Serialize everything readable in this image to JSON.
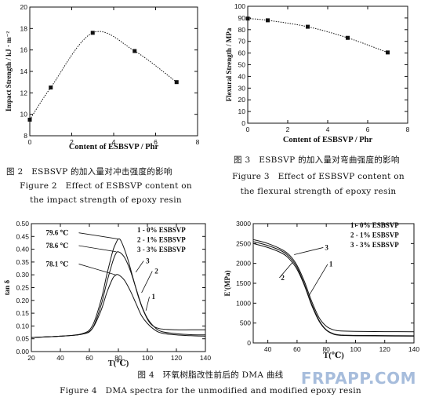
{
  "chart_data": [
    {
      "type": "line",
      "ylabel": "Impact Strength / kJ · m⁻²",
      "xlabel": "Content of ESBSVP / Phr",
      "xlim": [
        0,
        8
      ],
      "ylim": [
        8,
        20
      ],
      "xticks": [
        "0",
        "2",
        "4",
        "6",
        "8"
      ],
      "yticks": [
        "8",
        "10",
        "12",
        "14",
        "16",
        "18",
        "20"
      ],
      "grid": false,
      "series": [
        {
          "x": [
            0,
            1,
            3,
            5,
            7
          ],
          "values": [
            9.5,
            12.5,
            17.6,
            15.9,
            13.0
          ]
        }
      ]
    },
    {
      "type": "line",
      "ylabel": "Flexural Strength / MPa",
      "xlabel": "Content of ESBSVP / Phr",
      "xlim": [
        0,
        8
      ],
      "ylim": [
        0,
        100
      ],
      "xticks": [
        "0",
        "2",
        "4",
        "6",
        "8"
      ],
      "yticks": [
        "0",
        "10",
        "20",
        "30",
        "40",
        "50",
        "60",
        "70",
        "80",
        "90",
        "100"
      ],
      "grid": false,
      "series": [
        {
          "x": [
            0,
            1,
            3,
            5,
            7
          ],
          "values": [
            89.5,
            88.0,
            82.5,
            73.0,
            60.5
          ]
        }
      ]
    },
    {
      "type": "line",
      "ylabel": "tan δ",
      "xlabel": "T(℃)",
      "xlim": [
        20,
        140
      ],
      "ylim": [
        0,
        0.5
      ],
      "xticks": [
        "20",
        "40",
        "60",
        "80",
        "100",
        "120",
        "140"
      ],
      "yticks": [
        "0.00",
        "0.05",
        "0.10",
        "0.15",
        "0.20",
        "0.25",
        "0.30",
        "0.35",
        "0.40",
        "0.45",
        "0.50"
      ],
      "legend": [
        "1 - 0% ESBSVP",
        "2 - 1% ESBSVP",
        "3 - 3% ESBSVP"
      ],
      "annotations": [
        "79.6 ℃",
        "78.6 ℃",
        "78.1 ℃"
      ],
      "series": [
        {
          "name": "1",
          "x": [
            20,
            40,
            55,
            62,
            68,
            72,
            76,
            78,
            80,
            84,
            88,
            92,
            96,
            100,
            105,
            110,
            120,
            130,
            140
          ],
          "values": [
            0.055,
            0.06,
            0.068,
            0.09,
            0.16,
            0.23,
            0.285,
            0.298,
            0.3,
            0.28,
            0.24,
            0.19,
            0.14,
            0.11,
            0.085,
            0.072,
            0.065,
            0.062,
            0.06
          ]
        },
        {
          "name": "2",
          "x": [
            20,
            40,
            55,
            62,
            68,
            72,
            76,
            78,
            80,
            84,
            88,
            92,
            96,
            100,
            105,
            110,
            120,
            130,
            140
          ],
          "values": [
            0.055,
            0.06,
            0.068,
            0.09,
            0.18,
            0.27,
            0.35,
            0.38,
            0.39,
            0.37,
            0.32,
            0.25,
            0.18,
            0.13,
            0.095,
            0.078,
            0.07,
            0.066,
            0.065
          ]
        },
        {
          "name": "3",
          "x": [
            20,
            40,
            55,
            62,
            68,
            72,
            76,
            78,
            80,
            82,
            86,
            90,
            94,
            98,
            102,
            108,
            120,
            130,
            140
          ],
          "values": [
            0.055,
            0.06,
            0.07,
            0.1,
            0.2,
            0.3,
            0.39,
            0.42,
            0.44,
            0.43,
            0.37,
            0.29,
            0.21,
            0.15,
            0.11,
            0.09,
            0.085,
            0.085,
            0.085
          ]
        }
      ]
    },
    {
      "type": "line",
      "ylabel": "E'(MPa)",
      "xlabel": "T(℃)",
      "xlim": [
        30,
        140
      ],
      "ylim": [
        0,
        3000
      ],
      "xticks": [
        "40",
        "60",
        "80",
        "100",
        "120",
        "140"
      ],
      "yticks": [
        "0",
        "500",
        "1000",
        "1500",
        "2000",
        "2500",
        "3000"
      ],
      "legend": [
        "1 - 0% ESBSVP",
        "2 - 1% ESBSVP",
        "3 - 3% ESBSVP"
      ],
      "series": [
        {
          "name": "1",
          "x": [
            30,
            40,
            50,
            55,
            60,
            65,
            70,
            75,
            80,
            85,
            90,
            100,
            120,
            140
          ],
          "values": [
            2500,
            2400,
            2250,
            2100,
            1850,
            1450,
            950,
            550,
            320,
            220,
            190,
            180,
            175,
            170
          ]
        },
        {
          "name": "2",
          "x": [
            30,
            40,
            50,
            55,
            60,
            65,
            70,
            75,
            80,
            85,
            90,
            100,
            120,
            140
          ],
          "values": [
            2550,
            2450,
            2300,
            2150,
            1900,
            1480,
            980,
            570,
            330,
            230,
            200,
            190,
            185,
            180
          ]
        },
        {
          "name": "3",
          "x": [
            30,
            40,
            50,
            55,
            60,
            65,
            70,
            75,
            80,
            85,
            90,
            100,
            120,
            140
          ],
          "values": [
            2600,
            2500,
            2340,
            2200,
            1950,
            1550,
            1050,
            640,
            420,
            330,
            300,
            290,
            285,
            280
          ]
        }
      ]
    }
  ],
  "captions": {
    "fig2_cn": "图 2　ESBSVP 的加入量对冲击强度的影响",
    "fig2_en1": "Figure 2　Effect of ESBSVP content on",
    "fig2_en2": "the impact strength of epoxy resin",
    "fig3_cn": "图 3　ESBSVP 的加入量对弯曲强度的影响",
    "fig3_en1": "Figure 3　Effect of ESBSVP content on",
    "fig3_en2": "the flexural strength of epoxy resin",
    "fig4_cn": "图 4　环氧树脂改性前后的 DMA 曲线",
    "fig4_en": "Figure 4　DMA spectra for the unmodified and modified epoxy resin"
  },
  "watermark": "FRPAPP.COM"
}
